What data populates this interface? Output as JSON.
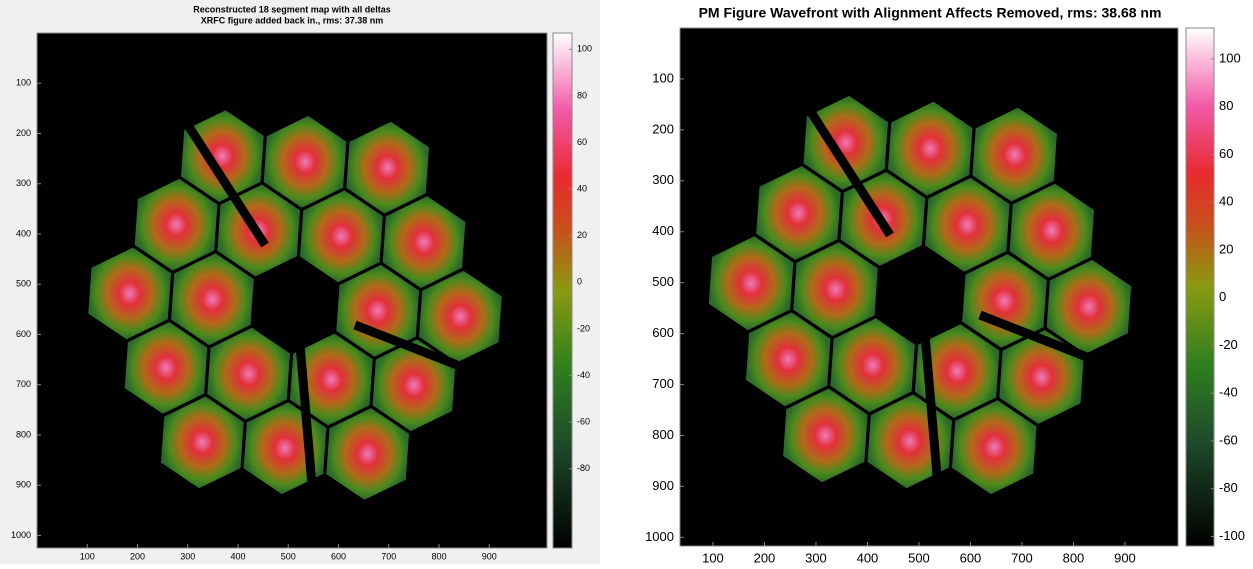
{
  "chart_data": [
    {
      "type": "image",
      "title": [
        "Reconstructed 18 segment map with all deltas",
        "XRFC figure added back in., rms: 37.38 nm"
      ],
      "xlim": [
        0,
        1015
      ],
      "ylim": [
        0,
        1025
      ],
      "xticks": [
        100,
        200,
        300,
        400,
        500,
        600,
        700,
        800,
        900
      ],
      "yticks": [
        100,
        200,
        300,
        400,
        500,
        600,
        700,
        800,
        900,
        1000
      ],
      "clim": [
        -114,
        107
      ],
      "cticks": [
        100,
        80,
        60,
        40,
        20,
        0,
        -20,
        -40,
        -60,
        -80
      ]
    },
    {
      "type": "image",
      "title": "PM Figure Wavefront with Alignment Affects Removed, rms: 38.68 nm",
      "xlim": [
        36,
        1003
      ],
      "ylim": [
        0,
        1017
      ],
      "xticks": [
        100,
        200,
        300,
        400,
        500,
        600,
        700,
        800,
        900
      ],
      "yticks": [
        100,
        200,
        300,
        400,
        500,
        600,
        700,
        800,
        900,
        1000
      ],
      "clim": [
        -104,
        113
      ],
      "cticks": [
        100,
        80,
        60,
        40,
        20,
        0,
        -20,
        -40,
        -60,
        -80,
        -100
      ]
    }
  ]
}
